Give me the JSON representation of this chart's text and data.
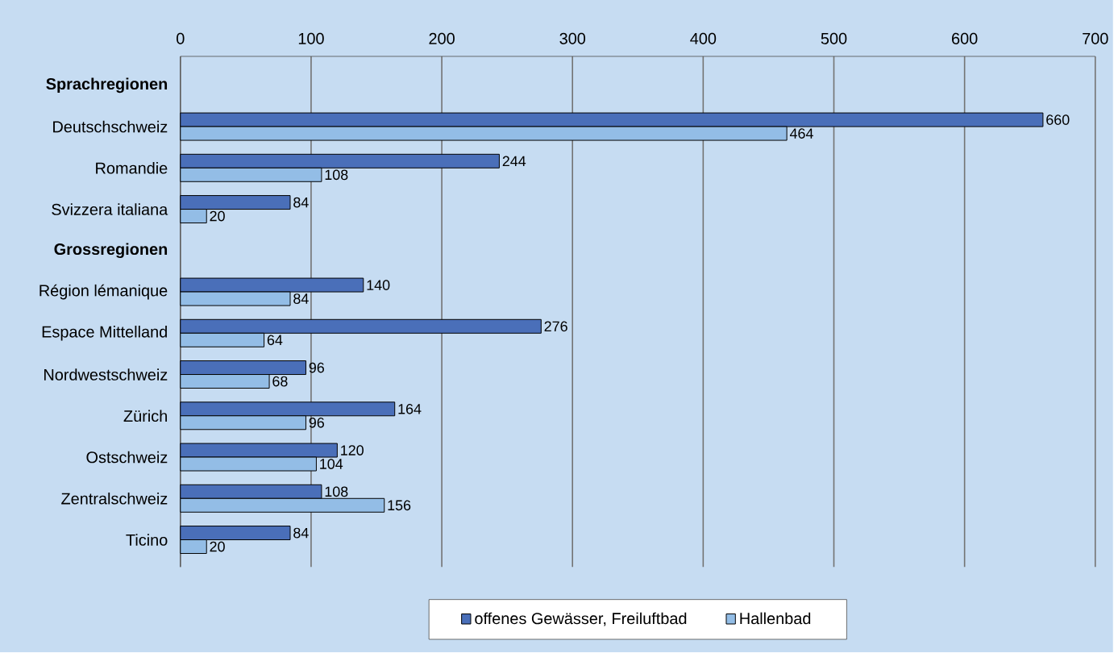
{
  "chart_data": {
    "type": "bar",
    "orientation": "horizontal",
    "categories": [
      "Sprachregionen",
      "Deutschschweiz",
      "Romandie",
      "Svizzera italiana",
      "Grossregionen",
      "Région lémanique",
      "Espace Mittelland",
      "Nordwestschweiz",
      "Zürich",
      "Ostschweiz",
      "Zentralschweiz",
      "Ticino"
    ],
    "series": [
      {
        "name": "offenes Gewässer, Freiluftbad",
        "color": "#4a6fb9",
        "values": [
          null,
          660,
          244,
          84,
          null,
          140,
          276,
          96,
          164,
          120,
          108,
          84
        ]
      },
      {
        "name": "Hallenbad",
        "color": "#93bde6",
        "values": [
          null,
          464,
          108,
          20,
          null,
          84,
          64,
          68,
          96,
          104,
          156,
          20
        ]
      }
    ],
    "xlim": [
      0,
      700
    ],
    "xticks": [
      0,
      100,
      200,
      300,
      400,
      500,
      600,
      700
    ],
    "grid": "x",
    "legend": "bottom",
    "data_labels": true
  }
}
